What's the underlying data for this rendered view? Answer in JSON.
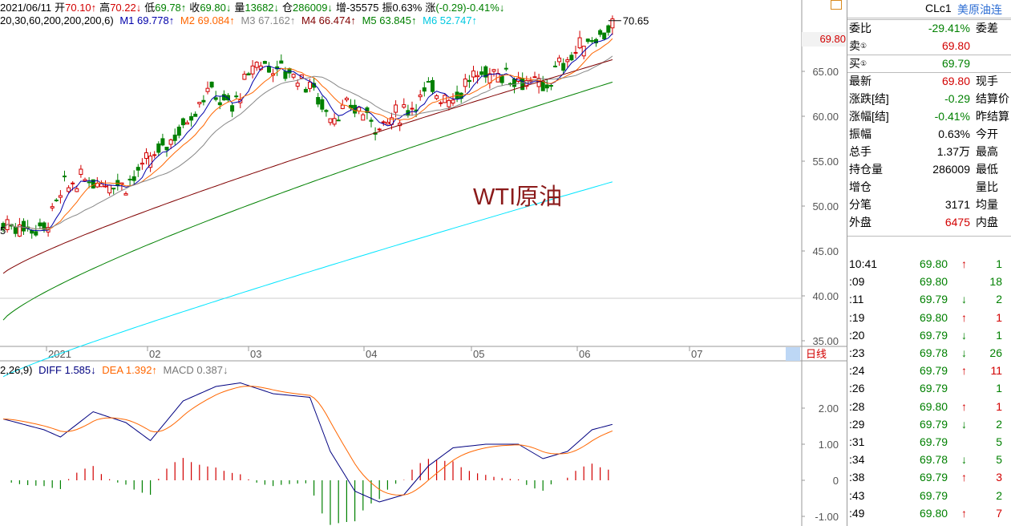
{
  "info_bar": {
    "date": "2021/06/11",
    "open_label": "开",
    "open": "70.10↑",
    "high_label": "高",
    "high": "70.22↓",
    "low_label": "低",
    "low": "69.78↑",
    "close_label": "收",
    "close": "69.80↓",
    "vol_label": "量",
    "vol": "13682↓",
    "oi_label": "仓",
    "oi": "286009↓",
    "inc_label": "增",
    "inc": "-35575",
    "amp_label": "振",
    "amp": "0.63%",
    "chg_label": "涨",
    "chg": "(-0.29)-0.41%↓"
  },
  "ma_bar": {
    "params": "20,30,60,200,200,200,6)",
    "m1": "M1 69.778↑",
    "m2": "M2 69.084↑",
    "m3": "M3 67.162↑",
    "m4": "M4 66.474↑",
    "m5": "M5 63.845↑",
    "m6": "M6 52.747↑"
  },
  "macd_bar": {
    "params": "2,26,9)",
    "diff": "DIFF 1.585↓",
    "dea": "DEA 1.392↑",
    "macd": "MACD 0.387↓"
  },
  "price_axis": [
    "65.00",
    "60.00",
    "55.00",
    "50.00",
    "45.00",
    "40.00",
    "35.00"
  ],
  "current_price_tag": "69.80",
  "high_tag": "70.65",
  "left_low_tag": "5",
  "watermark": "WTI原油",
  "time_axis": [
    "2021",
    "02",
    "03",
    "04",
    "05",
    "06",
    "07"
  ],
  "period_button": "日线",
  "macd_axis": [
    "2.00",
    "1.00",
    "0",
    "-1.00"
  ],
  "colors": {
    "up": "#d20000",
    "down": "#008000",
    "m1": "#0000aa",
    "m2": "#ff6600",
    "m3": "#888888",
    "m4": "#800000",
    "m5": "#008000",
    "m6": "#00e5ff"
  },
  "quote_panel": {
    "code": "CLc1",
    "name": "美原油连",
    "rows": [
      {
        "k": "委比",
        "v": "-29.41%",
        "k2": "委差",
        "color": "green"
      },
      {
        "k": "卖",
        "v": "69.80",
        "k2": "",
        "color": "red",
        "circ": "①"
      },
      {
        "k": "买",
        "v": "69.79",
        "k2": "",
        "color": "green",
        "circ": "①"
      },
      {
        "k": "最新",
        "v": "69.80",
        "k2": "现手",
        "color": "red"
      },
      {
        "k": "涨跌[结]",
        "v": "-0.29",
        "k2": "结算价",
        "color": "green"
      },
      {
        "k": "涨幅[结]",
        "v": "-0.41%",
        "k2": "昨结算",
        "color": "green"
      },
      {
        "k": "振幅",
        "v": "0.63%",
        "k2": "今开",
        "color": "black"
      },
      {
        "k": "总手",
        "v": "1.37万",
        "k2": "最高",
        "color": "black"
      },
      {
        "k": "持仓量",
        "v": "286009",
        "k2": "最低",
        "color": "black"
      },
      {
        "k": "增仓",
        "v": "",
        "k2": "量比",
        "color": "black"
      },
      {
        "k": "分笔",
        "v": "3171",
        "k2": "均量",
        "color": "black"
      },
      {
        "k": "外盘",
        "v": "6475",
        "k2": "内盘",
        "color": "red"
      }
    ]
  },
  "ticks": [
    {
      "t": "10:41",
      "p": "69.80",
      "a": "↑",
      "n": "1",
      "pc": "green",
      "ac": "red",
      "nc": "green"
    },
    {
      "t": ":09",
      "p": "69.80",
      "a": "",
      "n": "18",
      "pc": "green",
      "ac": "red",
      "nc": "green"
    },
    {
      "t": ":11",
      "p": "69.79",
      "a": "↓",
      "n": "2",
      "pc": "green",
      "ac": "green",
      "nc": "green"
    },
    {
      "t": ":19",
      "p": "69.80",
      "a": "↑",
      "n": "1",
      "pc": "green",
      "ac": "red",
      "nc": "red"
    },
    {
      "t": ":20",
      "p": "69.79",
      "a": "↓",
      "n": "1",
      "pc": "green",
      "ac": "green",
      "nc": "green"
    },
    {
      "t": ":23",
      "p": "69.78",
      "a": "↓",
      "n": "26",
      "pc": "green",
      "ac": "green",
      "nc": "green"
    },
    {
      "t": ":24",
      "p": "69.79",
      "a": "↑",
      "n": "11",
      "pc": "green",
      "ac": "red",
      "nc": "red"
    },
    {
      "t": ":26",
      "p": "69.79",
      "a": "",
      "n": "1",
      "pc": "green",
      "ac": "red",
      "nc": "green"
    },
    {
      "t": ":28",
      "p": "69.80",
      "a": "↑",
      "n": "1",
      "pc": "green",
      "ac": "red",
      "nc": "red"
    },
    {
      "t": ":29",
      "p": "69.79",
      "a": "↓",
      "n": "2",
      "pc": "green",
      "ac": "green",
      "nc": "green"
    },
    {
      "t": ":31",
      "p": "69.79",
      "a": "",
      "n": "5",
      "pc": "green",
      "ac": "red",
      "nc": "green"
    },
    {
      "t": ":34",
      "p": "69.78",
      "a": "↓",
      "n": "5",
      "pc": "green",
      "ac": "green",
      "nc": "green"
    },
    {
      "t": ":38",
      "p": "69.79",
      "a": "↑",
      "n": "3",
      "pc": "green",
      "ac": "red",
      "nc": "red"
    },
    {
      "t": ":43",
      "p": "69.79",
      "a": "",
      "n": "2",
      "pc": "green",
      "ac": "red",
      "nc": "green"
    },
    {
      "t": ":49",
      "p": "69.80",
      "a": "↑",
      "n": "7",
      "pc": "green",
      "ac": "red",
      "nc": "red"
    }
  ]
}
